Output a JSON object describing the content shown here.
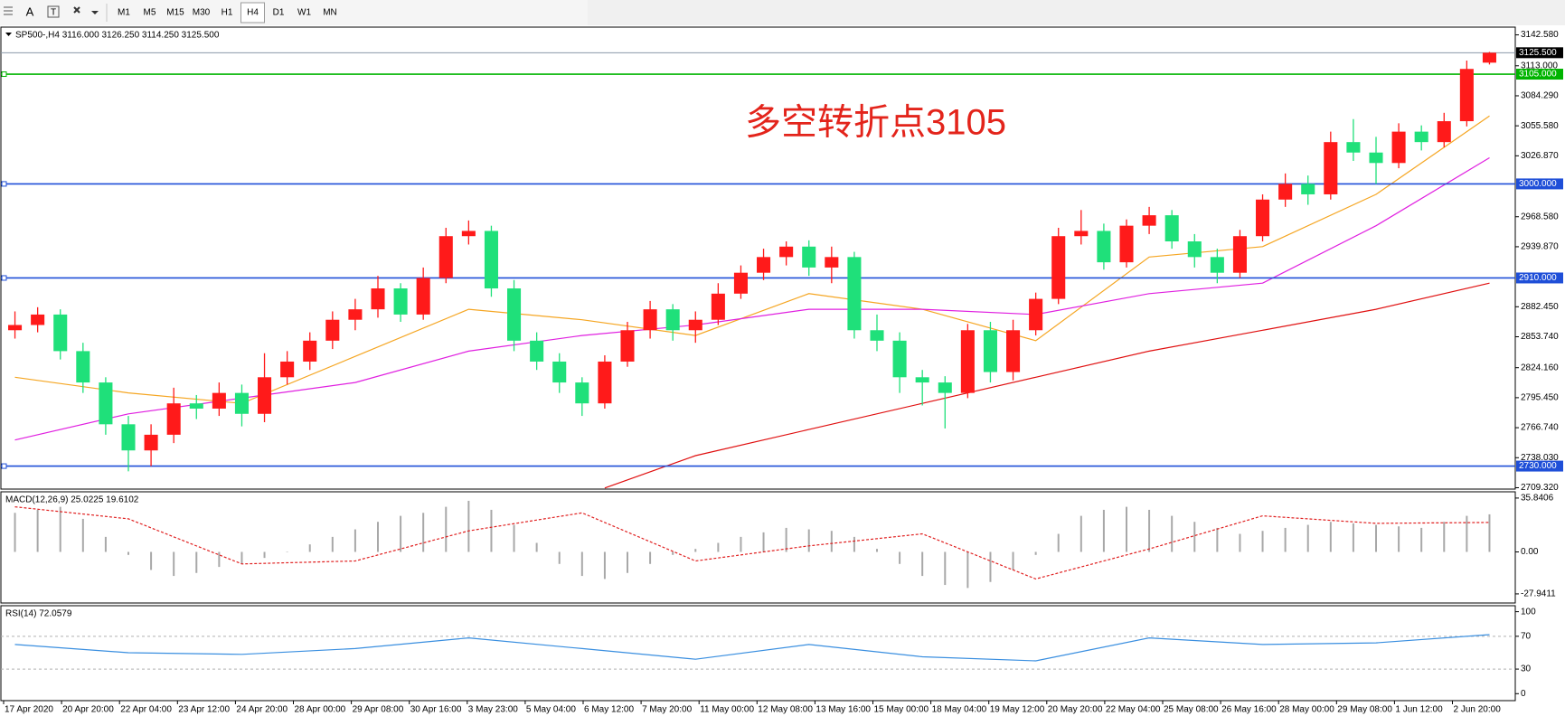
{
  "toolbar": {
    "text_tool": "A",
    "buttons": [
      "M1",
      "M5",
      "M15",
      "M30",
      "H1",
      "H4",
      "D1",
      "W1",
      "MN"
    ],
    "selected": "H4"
  },
  "chart_data": [
    {
      "type": "candlestick",
      "title": "SP500-,H4  3116.000 3126.250 3114.250 3125.500",
      "annotation": "多空转折点3105",
      "up_color": "#ff1a1a",
      "down_color": "#1fe07a",
      "x_labels": [
        "17 Apr 2020",
        "20 Apr 20:00",
        "22 Apr 04:00",
        "23 Apr 12:00",
        "24 Apr 20:00",
        "28 Apr 00:00",
        "29 Apr 08:00",
        "30 Apr 16:00",
        "3 May 23:00",
        "5 May 04:00",
        "6 May 12:00",
        "7 May 20:00",
        "11 May 00:00",
        "12 May 08:00",
        "13 May 16:00",
        "15 May 00:00",
        "18 May 04:00",
        "19 May 12:00",
        "20 May 20:00",
        "22 May 04:00",
        "25 May 08:00",
        "26 May 16:00",
        "28 May 00:00",
        "29 May 08:00",
        "1 Jun 12:00",
        "2 Jun 20:00"
      ],
      "open": [
        2860,
        2865,
        2875,
        2840,
        2810,
        2770,
        2745,
        2760,
        2790,
        2785,
        2800,
        2780,
        2815,
        2830,
        2850,
        2870,
        2880,
        2900,
        2875,
        2910,
        2950,
        2955,
        2900,
        2850,
        2830,
        2810,
        2790,
        2830,
        2860,
        2880,
        2860,
        2870,
        2895,
        2915,
        2930,
        2940,
        2920,
        2930,
        2860,
        2850,
        2815,
        2810,
        2800,
        2860,
        2820,
        2860,
        2890,
        2950,
        2955,
        2925,
        2960,
        2970,
        2945,
        2930,
        2915,
        2950,
        2985,
        3000,
        2990,
        3040,
        3030,
        3020,
        3050,
        3040,
        3060,
        3116
      ],
      "high": [
        2878,
        2882,
        2880,
        2848,
        2815,
        2778,
        2770,
        2805,
        2798,
        2810,
        2808,
        2838,
        2840,
        2858,
        2878,
        2890,
        2912,
        2905,
        2920,
        2958,
        2965,
        2960,
        2908,
        2858,
        2838,
        2815,
        2836,
        2868,
        2888,
        2885,
        2878,
        2905,
        2922,
        2938,
        2945,
        2946,
        2940,
        2935,
        2875,
        2858,
        2822,
        2816,
        2866,
        2868,
        2870,
        2896,
        2958,
        2975,
        2962,
        2966,
        2978,
        2975,
        2952,
        2938,
        2956,
        2990,
        3010,
        3008,
        3050,
        3062,
        3045,
        3058,
        3056,
        3068,
        3118,
        3126.25
      ],
      "low": [
        2852,
        2858,
        2832,
        2800,
        2760,
        2725,
        2730,
        2752,
        2775,
        2778,
        2768,
        2772,
        2808,
        2822,
        2842,
        2860,
        2872,
        2868,
        2870,
        2905,
        2942,
        2892,
        2840,
        2822,
        2800,
        2778,
        2785,
        2825,
        2852,
        2850,
        2848,
        2865,
        2890,
        2908,
        2922,
        2912,
        2905,
        2852,
        2840,
        2800,
        2788,
        2766,
        2795,
        2810,
        2812,
        2855,
        2885,
        2942,
        2918,
        2920,
        2952,
        2938,
        2920,
        2905,
        2910,
        2945,
        2978,
        2980,
        2985,
        3022,
        3000,
        3015,
        3032,
        3035,
        3055,
        3114.25
      ],
      "close": [
        2865,
        2875,
        2840,
        2810,
        2770,
        2745,
        2760,
        2790,
        2785,
        2800,
        2780,
        2815,
        2830,
        2850,
        2870,
        2880,
        2900,
        2875,
        2910,
        2950,
        2955,
        2900,
        2850,
        2830,
        2810,
        2790,
        2830,
        2860,
        2880,
        2860,
        2870,
        2895,
        2915,
        2930,
        2940,
        2920,
        2930,
        2860,
        2850,
        2815,
        2810,
        2800,
        2860,
        2820,
        2860,
        2890,
        2950,
        2955,
        2925,
        2960,
        2970,
        2945,
        2930,
        2915,
        2950,
        2985,
        3000,
        2990,
        3040,
        3030,
        3020,
        3050,
        3040,
        3060,
        3110,
        3125.5
      ],
      "series": [
        {
          "color": "#f5a623",
          "x": [
            0,
            5,
            10,
            15,
            20,
            25,
            30,
            35,
            40,
            45,
            50,
            55,
            60,
            65
          ],
          "values": [
            2815,
            2800,
            2790,
            2835,
            2880,
            2870,
            2855,
            2895,
            2880,
            2850,
            2930,
            2940,
            2990,
            3065
          ]
        },
        {
          "color": "#e020e0",
          "x": [
            0,
            5,
            10,
            15,
            20,
            25,
            30,
            35,
            40,
            45,
            50,
            55,
            60,
            65
          ],
          "values": [
            2755,
            2780,
            2795,
            2810,
            2840,
            2855,
            2865,
            2880,
            2880,
            2875,
            2895,
            2905,
            2960,
            3025
          ]
        },
        {
          "color": "#e01010",
          "x": [
            26,
            30,
            35,
            40,
            45,
            50,
            55,
            60,
            65
          ],
          "values": [
            2709,
            2740,
            2765,
            2790,
            2815,
            2840,
            2860,
            2880,
            2905
          ]
        }
      ],
      "levels": [
        {
          "value": 3105,
          "label": "3105.000",
          "color": "#00b400"
        },
        {
          "value": 3000,
          "label": "3000.000",
          "color": "#1f4fd8"
        },
        {
          "value": 2910,
          "label": "2910.000",
          "color": "#1f4fd8"
        },
        {
          "value": 2730,
          "label": "2730.000",
          "color": "#1f4fd8"
        }
      ],
      "last_price": {
        "value": 3125.5,
        "label": "3125.500",
        "color": "#8a9aa8"
      },
      "ylim": [
        2708,
        3150
      ],
      "yticks": [
        {
          "value": 3142.58,
          "label": "3142.580"
        },
        {
          "value": 3113,
          "label": "3113.000"
        },
        {
          "value": 3084.29,
          "label": "3084.290"
        },
        {
          "value": 3055.58,
          "label": "3055.580"
        },
        {
          "value": 3026.87,
          "label": "3026.870"
        },
        {
          "value": 2968.58,
          "label": "2968.580"
        },
        {
          "value": 2939.87,
          "label": "2939.870"
        },
        {
          "value": 2882.45,
          "label": "2882.450"
        },
        {
          "value": 2853.74,
          "label": "2853.740"
        },
        {
          "value": 2824.16,
          "label": "2824.160"
        },
        {
          "value": 2795.45,
          "label": "2795.450"
        },
        {
          "value": 2766.74,
          "label": "2766.740"
        },
        {
          "value": 2738.03,
          "label": "2738.030"
        },
        {
          "value": 2709.32,
          "label": "2709.320"
        }
      ]
    },
    {
      "type": "macd",
      "title": "MACD(12,26,9) 25.0225 19.6102",
      "histogram": [
        26,
        28,
        30,
        22,
        10,
        -2,
        -12,
        -16,
        -14,
        -10,
        -8,
        -4,
        0,
        5,
        10,
        15,
        20,
        24,
        26,
        30,
        34,
        28,
        18,
        6,
        -8,
        -16,
        -18,
        -14,
        -8,
        -2,
        2,
        6,
        10,
        13,
        16,
        15,
        14,
        10,
        2,
        -8,
        -16,
        -22,
        -24,
        -20,
        -12,
        -2,
        12,
        24,
        28,
        30,
        28,
        24,
        20,
        16,
        12,
        14,
        16,
        18,
        20,
        19,
        18,
        17,
        16,
        20,
        24,
        25
      ],
      "histogram_color": "#a8a8a8",
      "signal": {
        "color": "#e02020",
        "x": [
          0,
          5,
          10,
          15,
          20,
          25,
          30,
          35,
          40,
          45,
          50,
          55,
          60,
          65
        ],
        "values": [
          30,
          22,
          -8,
          -6,
          14,
          26,
          -6,
          4,
          12,
          -18,
          2,
          24,
          19,
          19.6
        ]
      },
      "ylim": [
        -34,
        40
      ],
      "yticks": [
        35.8406,
        {
          "value": 0,
          "label": "0.00"
        },
        -27.9411
      ]
    },
    {
      "type": "rsi",
      "title": "RSI(14) 72.0579",
      "color": "#3a8fe0",
      "x": [
        0,
        5,
        10,
        15,
        20,
        25,
        30,
        35,
        40,
        45,
        50,
        55,
        60,
        65
      ],
      "values": [
        60,
        50,
        48,
        55,
        68,
        55,
        42,
        60,
        45,
        40,
        68,
        60,
        62,
        72
      ],
      "levels": [
        70,
        30
      ],
      "ylim": [
        -8.5,
        107.3
      ],
      "yticks": [
        100,
        70,
        30,
        0
      ]
    }
  ]
}
